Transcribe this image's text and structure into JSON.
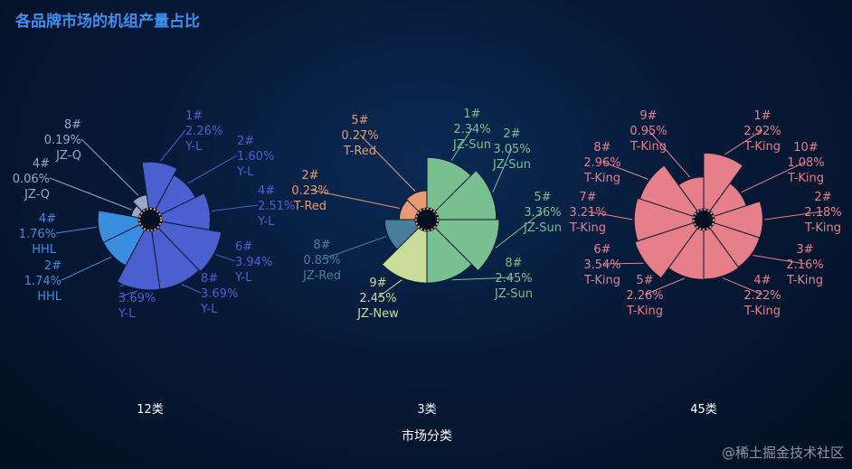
{
  "title": "各品牌市场的机组产量占比",
  "watermark": "@稀土掘金技术社区",
  "chart_data": {
    "type": "nightingale-rose",
    "xlabel": "市场分类",
    "categories": [
      "12类",
      "3类",
      "45类"
    ],
    "groups": [
      {
        "category": "12类",
        "slices": [
          {
            "label": "1#",
            "value": "2.26%",
            "brand": "Y-L",
            "color": "#4b5fd0"
          },
          {
            "label": "2#",
            "value": "1.60%",
            "brand": "Y-L",
            "color": "#4b5fd0"
          },
          {
            "label": "4#",
            "value": "2.51%",
            "brand": "Y-L",
            "color": "#4b5fd0"
          },
          {
            "label": "6#",
            "value": "3.94%",
            "brand": "Y-L",
            "color": "#4b5fd0"
          },
          {
            "label": "8#",
            "value": "3.69%",
            "brand": "Y-L",
            "color": "#4b5fd0"
          },
          {
            "label": "9#",
            "value": "3.69%",
            "brand": "Y-L",
            "color": "#4b5fd0"
          },
          {
            "label": "2#",
            "value": "1.74%",
            "brand": "HHL",
            "color": "#3a8ee0"
          },
          {
            "label": "4#",
            "value": "1.76%",
            "brand": "HHL",
            "color": "#3a8ee0"
          },
          {
            "label": "4#",
            "value": "0.06%",
            "brand": "JZ-Q",
            "color": "#9aa7c8"
          },
          {
            "label": "8#",
            "value": "0.19%",
            "brand": "JZ-Q",
            "color": "#9aa7c8"
          }
        ]
      },
      {
        "category": "3类",
        "slices": [
          {
            "label": "1#",
            "value": "2.34%",
            "brand": "JZ-Sun",
            "color": "#78c08f"
          },
          {
            "label": "2#",
            "value": "3.05%",
            "brand": "JZ-Sun",
            "color": "#78c08f"
          },
          {
            "label": "5#",
            "value": "3.36%",
            "brand": "JZ-Sun",
            "color": "#78c08f"
          },
          {
            "label": "8#",
            "value": "2.45%",
            "brand": "JZ-Sun",
            "color": "#78c08f"
          },
          {
            "label": "9#",
            "value": "2.45%",
            "brand": "JZ-New",
            "color": "#c9dc9a"
          },
          {
            "label": "8#",
            "value": "0.85%",
            "brand": "JZ-Red",
            "color": "#4a7d9b"
          },
          {
            "label": "2#",
            "value": "0.23%",
            "brand": "T-Red",
            "color": "#e89a72"
          },
          {
            "label": "5#",
            "value": "0.27%",
            "brand": "T-Red",
            "color": "#e89a72"
          }
        ]
      },
      {
        "category": "45类",
        "slices": [
          {
            "label": "1#",
            "value": "2.92%",
            "brand": "T-King",
            "color": "#e77f8b"
          },
          {
            "label": "10#",
            "value": "1.08%",
            "brand": "T-King",
            "color": "#e77f8b"
          },
          {
            "label": "2#",
            "value": "2.18%",
            "brand": "T-King",
            "color": "#e77f8b"
          },
          {
            "label": "3#",
            "value": "2.16%",
            "brand": "T-King",
            "color": "#e77f8b"
          },
          {
            "label": "4#",
            "value": "2.22%",
            "brand": "T-King",
            "color": "#e77f8b"
          },
          {
            "label": "5#",
            "value": "2.26%",
            "brand": "T-King",
            "color": "#e77f8b"
          },
          {
            "label": "6#",
            "value": "3.54%",
            "brand": "T-King",
            "color": "#e77f8b"
          },
          {
            "label": "7#",
            "value": "3.21%",
            "brand": "T-King",
            "color": "#e77f8b"
          },
          {
            "label": "8#",
            "value": "2.96%",
            "brand": "T-King",
            "color": "#e77f8b"
          },
          {
            "label": "9#",
            "value": "0.95%",
            "brand": "T-King",
            "color": "#e77f8b"
          }
        ]
      }
    ]
  }
}
